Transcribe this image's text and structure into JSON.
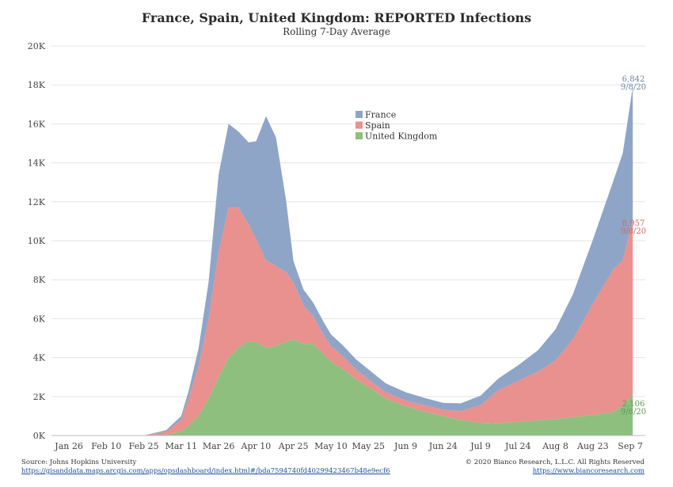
{
  "chart_data": {
    "type": "area",
    "title": "France, Spain, United Kingdom: REPORTED Infections",
    "subtitle": "Rolling 7-Day Average",
    "stacked": true,
    "ylim": [
      0,
      20000
    ],
    "yticks": [
      {
        "value": 0,
        "label": "0K"
      },
      {
        "value": 2000,
        "label": "2K"
      },
      {
        "value": 4000,
        "label": "4K"
      },
      {
        "value": 6000,
        "label": "6K"
      },
      {
        "value": 8000,
        "label": "8K"
      },
      {
        "value": 10000,
        "label": "10K"
      },
      {
        "value": 12000,
        "label": "12K"
      },
      {
        "value": 14000,
        "label": "14K"
      },
      {
        "value": 16000,
        "label": "16K"
      },
      {
        "value": 18000,
        "label": "18K"
      },
      {
        "value": 20000,
        "label": "20K"
      }
    ],
    "xlim": [
      "2020-01-19",
      "2020-09-13"
    ],
    "xticks": [
      {
        "date": "2020-01-26",
        "label": "Jan 26"
      },
      {
        "date": "2020-02-10",
        "label": "Feb 10"
      },
      {
        "date": "2020-02-25",
        "label": "Feb 25"
      },
      {
        "date": "2020-03-11",
        "label": "Mar 11"
      },
      {
        "date": "2020-03-26",
        "label": "Mar 26"
      },
      {
        "date": "2020-04-10",
        "label": "Apr 10"
      },
      {
        "date": "2020-04-25",
        "label": "Apr 25"
      },
      {
        "date": "2020-05-10",
        "label": "May 10"
      },
      {
        "date": "2020-05-25",
        "label": "May 25"
      },
      {
        "date": "2020-06-09",
        "label": "Jun 9"
      },
      {
        "date": "2020-06-24",
        "label": "Jun 24"
      },
      {
        "date": "2020-07-09",
        "label": "Jul 9"
      },
      {
        "date": "2020-07-24",
        "label": "Jul 24"
      },
      {
        "date": "2020-08-08",
        "label": "Aug 8"
      },
      {
        "date": "2020-08-23",
        "label": "Aug 23"
      },
      {
        "date": "2020-09-07",
        "label": "Sep 7"
      }
    ],
    "grid": true,
    "legend_position": "center-top",
    "series": [
      {
        "name": "United Kingdom",
        "color": "#8fbf7f",
        "points": [
          [
            "2020-01-26",
            0
          ],
          [
            "2020-02-25",
            0
          ],
          [
            "2020-03-05",
            50
          ],
          [
            "2020-03-11",
            200
          ],
          [
            "2020-03-14",
            500
          ],
          [
            "2020-03-18",
            1000
          ],
          [
            "2020-03-22",
            1900
          ],
          [
            "2020-03-26",
            3000
          ],
          [
            "2020-03-30",
            4000
          ],
          [
            "2020-04-03",
            4500
          ],
          [
            "2020-04-07",
            4850
          ],
          [
            "2020-04-10",
            4800
          ],
          [
            "2020-04-14",
            4500
          ],
          [
            "2020-04-18",
            4600
          ],
          [
            "2020-04-22",
            4800
          ],
          [
            "2020-04-25",
            4950
          ],
          [
            "2020-04-29",
            4700
          ],
          [
            "2020-05-03",
            4700
          ],
          [
            "2020-05-07",
            4200
          ],
          [
            "2020-05-10",
            3800
          ],
          [
            "2020-05-15",
            3400
          ],
          [
            "2020-05-20",
            2900
          ],
          [
            "2020-05-25",
            2500
          ],
          [
            "2020-06-01",
            1900
          ],
          [
            "2020-06-09",
            1500
          ],
          [
            "2020-06-16",
            1250
          ],
          [
            "2020-06-24",
            1000
          ],
          [
            "2020-07-01",
            800
          ],
          [
            "2020-07-09",
            650
          ],
          [
            "2020-07-16",
            620
          ],
          [
            "2020-07-24",
            700
          ],
          [
            "2020-08-01",
            780
          ],
          [
            "2020-08-08",
            850
          ],
          [
            "2020-08-15",
            950
          ],
          [
            "2020-08-23",
            1050
          ],
          [
            "2020-08-31",
            1200
          ],
          [
            "2020-09-04",
            1500
          ],
          [
            "2020-09-08",
            2106
          ]
        ]
      },
      {
        "name": "Spain",
        "color": "#e8918f",
        "points": [
          [
            "2020-01-26",
            0
          ],
          [
            "2020-02-25",
            0
          ],
          [
            "2020-03-05",
            150
          ],
          [
            "2020-03-11",
            600
          ],
          [
            "2020-03-14",
            1400
          ],
          [
            "2020-03-18",
            2600
          ],
          [
            "2020-03-22",
            4100
          ],
          [
            "2020-03-26",
            6400
          ],
          [
            "2020-03-30",
            7700
          ],
          [
            "2020-04-03",
            7200
          ],
          [
            "2020-04-07",
            6000
          ],
          [
            "2020-04-10",
            5300
          ],
          [
            "2020-04-14",
            4500
          ],
          [
            "2020-04-18",
            4100
          ],
          [
            "2020-04-22",
            3600
          ],
          [
            "2020-04-25",
            2900
          ],
          [
            "2020-04-29",
            2000
          ],
          [
            "2020-05-03",
            1400
          ],
          [
            "2020-05-07",
            1000
          ],
          [
            "2020-05-10",
            800
          ],
          [
            "2020-05-15",
            650
          ],
          [
            "2020-05-20",
            500
          ],
          [
            "2020-05-25",
            400
          ],
          [
            "2020-06-01",
            330
          ],
          [
            "2020-06-09",
            300
          ],
          [
            "2020-06-16",
            320
          ],
          [
            "2020-06-24",
            330
          ],
          [
            "2020-07-01",
            450
          ],
          [
            "2020-07-09",
            900
          ],
          [
            "2020-07-16",
            1700
          ],
          [
            "2020-07-24",
            2100
          ],
          [
            "2020-08-01",
            2500
          ],
          [
            "2020-08-08",
            3000
          ],
          [
            "2020-08-15",
            4000
          ],
          [
            "2020-08-23",
            5700
          ],
          [
            "2020-08-31",
            7300
          ],
          [
            "2020-09-04",
            7500
          ],
          [
            "2020-09-08",
            8957
          ]
        ]
      },
      {
        "name": "France",
        "color": "#8fa5c7",
        "points": [
          [
            "2020-01-26",
            0
          ],
          [
            "2020-02-25",
            0
          ],
          [
            "2020-03-05",
            80
          ],
          [
            "2020-03-11",
            200
          ],
          [
            "2020-03-14",
            400
          ],
          [
            "2020-03-18",
            900
          ],
          [
            "2020-03-22",
            1900
          ],
          [
            "2020-03-26",
            4000
          ],
          [
            "2020-03-30",
            4300
          ],
          [
            "2020-04-03",
            3900
          ],
          [
            "2020-04-07",
            4200
          ],
          [
            "2020-04-10",
            5000
          ],
          [
            "2020-04-14",
            7400
          ],
          [
            "2020-04-18",
            6600
          ],
          [
            "2020-04-22",
            3700
          ],
          [
            "2020-04-25",
            1100
          ],
          [
            "2020-04-29",
            800
          ],
          [
            "2020-05-03",
            700
          ],
          [
            "2020-05-07",
            650
          ],
          [
            "2020-05-10",
            600
          ],
          [
            "2020-05-15",
            550
          ],
          [
            "2020-05-20",
            520
          ],
          [
            "2020-05-25",
            500
          ],
          [
            "2020-06-01",
            450
          ],
          [
            "2020-06-09",
            420
          ],
          [
            "2020-06-16",
            380
          ],
          [
            "2020-06-24",
            350
          ],
          [
            "2020-07-01",
            400
          ],
          [
            "2020-07-09",
            500
          ],
          [
            "2020-07-16",
            600
          ],
          [
            "2020-07-24",
            800
          ],
          [
            "2020-08-01",
            1100
          ],
          [
            "2020-08-08",
            1600
          ],
          [
            "2020-08-15",
            2300
          ],
          [
            "2020-08-23",
            3300
          ],
          [
            "2020-08-31",
            4500
          ],
          [
            "2020-09-04",
            5500
          ],
          [
            "2020-09-08",
            6842
          ]
        ]
      }
    ],
    "end_labels": [
      {
        "series": "France",
        "value_text": "6,842",
        "date_text": "9/8/20",
        "color": "#6d85ad"
      },
      {
        "series": "Spain",
        "value_text": "8,957",
        "date_text": "9/8/20",
        "color": "#c96b6b"
      },
      {
        "series": "United Kingdom",
        "value_text": "2,106",
        "date_text": "9/8/20",
        "color": "#5e9a4f"
      }
    ]
  },
  "footer": {
    "source": "Source: Johns Hopkins University",
    "source_url": "https://gisanddata.maps.arcgis.com/apps/opsdashboard/index.html#/bda7594740fd40299423467b48e9ecf6",
    "copyright": "© 2020 Bianco Research, L.L.C. All Rights Reserved",
    "site_url": "https://www.biancoresearch.com"
  }
}
